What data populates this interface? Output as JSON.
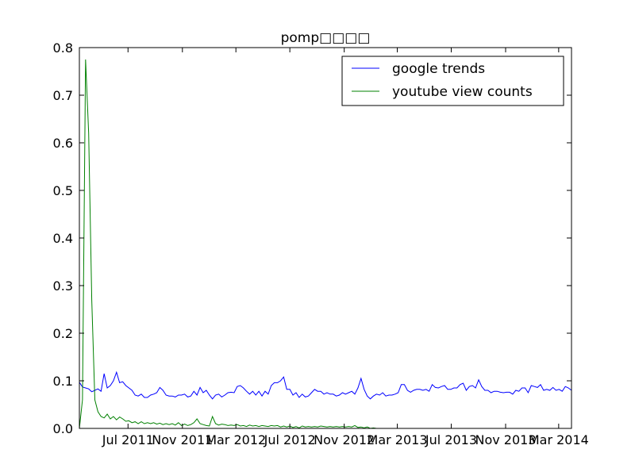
{
  "chart_data": {
    "type": "line",
    "title": "pomp□□□□",
    "xlabel": "",
    "ylabel": "",
    "xlim": [
      "2011-03-13",
      "2014-03-30"
    ],
    "ylim": [
      0.0,
      0.8
    ],
    "y_ticks": [
      "0.0",
      "0.1",
      "0.2",
      "0.3",
      "0.4",
      "0.5",
      "0.6",
      "0.7",
      "0.8"
    ],
    "x_ticks": [
      {
        "date": "2011-07-01",
        "label": "Jul 2011"
      },
      {
        "date": "2011-11-01",
        "label": "Nov 2011"
      },
      {
        "date": "2012-03-01",
        "label": "Mar 2012"
      },
      {
        "date": "2012-07-01",
        "label": "Jul 2012"
      },
      {
        "date": "2012-11-01",
        "label": "Nov 2012"
      },
      {
        "date": "2013-03-01",
        "label": "Mar 2013"
      },
      {
        "date": "2013-07-01",
        "label": "Jul 2013"
      },
      {
        "date": "2013-11-01",
        "label": "Nov 2013"
      },
      {
        "date": "2014-03-01",
        "label": "Mar 2014"
      }
    ],
    "grid": false,
    "legend_position": "top-right",
    "series": [
      {
        "name": "google trends",
        "color": "#0000ff",
        "points": [
          [
            "2011-03-13",
            0.097
          ],
          [
            "2011-03-20",
            0.087
          ],
          [
            "2011-03-27",
            0.085
          ],
          [
            "2011-04-03",
            0.083
          ],
          [
            "2011-04-10",
            0.077
          ],
          [
            "2011-04-17",
            0.08
          ],
          [
            "2011-04-24",
            0.083
          ],
          [
            "2011-05-01",
            0.078
          ],
          [
            "2011-05-08",
            0.115
          ],
          [
            "2011-05-15",
            0.085
          ],
          [
            "2011-05-22",
            0.09
          ],
          [
            "2011-05-29",
            0.1
          ],
          [
            "2011-06-05",
            0.118
          ],
          [
            "2011-06-12",
            0.096
          ],
          [
            "2011-06-19",
            0.098
          ],
          [
            "2011-06-26",
            0.09
          ],
          [
            "2011-07-03",
            0.085
          ],
          [
            "2011-07-10",
            0.08
          ],
          [
            "2011-07-17",
            0.07
          ],
          [
            "2011-07-24",
            0.068
          ],
          [
            "2011-07-31",
            0.072
          ],
          [
            "2011-08-07",
            0.065
          ],
          [
            "2011-08-14",
            0.065
          ],
          [
            "2011-08-21",
            0.07
          ],
          [
            "2011-08-28",
            0.072
          ],
          [
            "2011-09-04",
            0.075
          ],
          [
            "2011-09-11",
            0.086
          ],
          [
            "2011-09-18",
            0.08
          ],
          [
            "2011-09-25",
            0.07
          ],
          [
            "2011-10-02",
            0.068
          ],
          [
            "2011-10-09",
            0.068
          ],
          [
            "2011-10-16",
            0.066
          ],
          [
            "2011-10-23",
            0.07
          ],
          [
            "2011-10-30",
            0.07
          ],
          [
            "2011-11-06",
            0.072
          ],
          [
            "2011-11-13",
            0.066
          ],
          [
            "2011-11-20",
            0.068
          ],
          [
            "2011-11-27",
            0.078
          ],
          [
            "2011-12-04",
            0.07
          ],
          [
            "2011-12-11",
            0.086
          ],
          [
            "2011-12-18",
            0.075
          ],
          [
            "2011-12-25",
            0.08
          ],
          [
            "2012-01-01",
            0.07
          ],
          [
            "2012-01-08",
            0.062
          ],
          [
            "2012-01-15",
            0.07
          ],
          [
            "2012-01-22",
            0.072
          ],
          [
            "2012-01-29",
            0.066
          ],
          [
            "2012-02-05",
            0.07
          ],
          [
            "2012-02-12",
            0.075
          ],
          [
            "2012-02-19",
            0.076
          ],
          [
            "2012-02-26",
            0.075
          ],
          [
            "2012-03-04",
            0.088
          ],
          [
            "2012-03-11",
            0.09
          ],
          [
            "2012-03-18",
            0.085
          ],
          [
            "2012-03-25",
            0.078
          ],
          [
            "2012-04-01",
            0.072
          ],
          [
            "2012-04-08",
            0.078
          ],
          [
            "2012-04-15",
            0.07
          ],
          [
            "2012-04-22",
            0.078
          ],
          [
            "2012-04-29",
            0.068
          ],
          [
            "2012-05-06",
            0.078
          ],
          [
            "2012-05-13",
            0.072
          ],
          [
            "2012-05-20",
            0.09
          ],
          [
            "2012-05-27",
            0.096
          ],
          [
            "2012-06-03",
            0.096
          ],
          [
            "2012-06-10",
            0.1
          ],
          [
            "2012-06-17",
            0.108
          ],
          [
            "2012-06-24",
            0.082
          ],
          [
            "2012-07-01",
            0.082
          ],
          [
            "2012-07-08",
            0.07
          ],
          [
            "2012-07-15",
            0.075
          ],
          [
            "2012-07-22",
            0.065
          ],
          [
            "2012-07-29",
            0.072
          ],
          [
            "2012-08-05",
            0.066
          ],
          [
            "2012-08-12",
            0.068
          ],
          [
            "2012-08-19",
            0.075
          ],
          [
            "2012-08-26",
            0.082
          ],
          [
            "2012-09-02",
            0.078
          ],
          [
            "2012-09-09",
            0.078
          ],
          [
            "2012-09-16",
            0.072
          ],
          [
            "2012-09-23",
            0.075
          ],
          [
            "2012-09-30",
            0.072
          ],
          [
            "2012-10-07",
            0.072
          ],
          [
            "2012-10-14",
            0.068
          ],
          [
            "2012-10-21",
            0.07
          ],
          [
            "2012-10-28",
            0.075
          ],
          [
            "2012-11-04",
            0.072
          ],
          [
            "2012-11-11",
            0.075
          ],
          [
            "2012-11-18",
            0.078
          ],
          [
            "2012-11-25",
            0.072
          ],
          [
            "2012-12-02",
            0.085
          ],
          [
            "2012-12-09",
            0.105
          ],
          [
            "2012-12-16",
            0.082
          ],
          [
            "2012-12-23",
            0.068
          ],
          [
            "2012-12-30",
            0.062
          ],
          [
            "2013-01-06",
            0.068
          ],
          [
            "2013-01-13",
            0.072
          ],
          [
            "2013-01-20",
            0.07
          ],
          [
            "2013-01-27",
            0.075
          ],
          [
            "2013-02-03",
            0.068
          ],
          [
            "2013-02-10",
            0.07
          ],
          [
            "2013-02-17",
            0.07
          ],
          [
            "2013-02-24",
            0.072
          ],
          [
            "2013-03-03",
            0.075
          ],
          [
            "2013-03-10",
            0.092
          ],
          [
            "2013-03-17",
            0.092
          ],
          [
            "2013-03-24",
            0.08
          ],
          [
            "2013-03-31",
            0.076
          ],
          [
            "2013-04-07",
            0.08
          ],
          [
            "2013-04-14",
            0.082
          ],
          [
            "2013-04-21",
            0.082
          ],
          [
            "2013-04-28",
            0.08
          ],
          [
            "2013-05-05",
            0.082
          ],
          [
            "2013-05-12",
            0.078
          ],
          [
            "2013-05-19",
            0.092
          ],
          [
            "2013-05-26",
            0.086
          ],
          [
            "2013-06-02",
            0.085
          ],
          [
            "2013-06-09",
            0.088
          ],
          [
            "2013-06-16",
            0.09
          ],
          [
            "2013-06-23",
            0.082
          ],
          [
            "2013-06-30",
            0.082
          ],
          [
            "2013-07-07",
            0.085
          ],
          [
            "2013-07-14",
            0.085
          ],
          [
            "2013-07-21",
            0.092
          ],
          [
            "2013-07-28",
            0.095
          ],
          [
            "2013-08-04",
            0.08
          ],
          [
            "2013-08-11",
            0.088
          ],
          [
            "2013-08-18",
            0.09
          ],
          [
            "2013-08-25",
            0.085
          ],
          [
            "2013-09-01",
            0.102
          ],
          [
            "2013-09-08",
            0.088
          ],
          [
            "2013-09-15",
            0.08
          ],
          [
            "2013-09-22",
            0.08
          ],
          [
            "2013-09-29",
            0.075
          ],
          [
            "2013-10-06",
            0.078
          ],
          [
            "2013-10-13",
            0.078
          ],
          [
            "2013-10-20",
            0.076
          ],
          [
            "2013-10-27",
            0.075
          ],
          [
            "2013-11-03",
            0.076
          ],
          [
            "2013-11-10",
            0.076
          ],
          [
            "2013-11-17",
            0.072
          ],
          [
            "2013-11-24",
            0.08
          ],
          [
            "2013-12-01",
            0.078
          ],
          [
            "2013-12-08",
            0.085
          ],
          [
            "2013-12-15",
            0.085
          ],
          [
            "2013-12-22",
            0.075
          ],
          [
            "2013-12-29",
            0.09
          ],
          [
            "2014-01-05",
            0.088
          ],
          [
            "2014-01-12",
            0.086
          ],
          [
            "2014-01-19",
            0.092
          ],
          [
            "2014-01-26",
            0.08
          ],
          [
            "2014-02-02",
            0.082
          ],
          [
            "2014-02-09",
            0.08
          ],
          [
            "2014-02-16",
            0.086
          ],
          [
            "2014-02-23",
            0.08
          ],
          [
            "2014-03-02",
            0.082
          ],
          [
            "2014-03-09",
            0.078
          ],
          [
            "2014-03-16",
            0.088
          ],
          [
            "2014-03-23",
            0.085
          ],
          [
            "2014-03-30",
            0.08
          ]
        ]
      },
      {
        "name": "youtube view counts",
        "color": "#008000",
        "points": [
          [
            "2011-03-13",
            0.0
          ],
          [
            "2011-03-20",
            0.06
          ],
          [
            "2011-03-27",
            0.775
          ],
          [
            "2011-04-03",
            0.62
          ],
          [
            "2011-04-10",
            0.27
          ],
          [
            "2011-04-17",
            0.06
          ],
          [
            "2011-04-24",
            0.035
          ],
          [
            "2011-05-01",
            0.025
          ],
          [
            "2011-05-08",
            0.022
          ],
          [
            "2011-05-15",
            0.03
          ],
          [
            "2011-05-22",
            0.02
          ],
          [
            "2011-05-29",
            0.025
          ],
          [
            "2011-06-05",
            0.018
          ],
          [
            "2011-06-12",
            0.024
          ],
          [
            "2011-06-19",
            0.02
          ],
          [
            "2011-06-26",
            0.015
          ],
          [
            "2011-07-03",
            0.016
          ],
          [
            "2011-07-10",
            0.012
          ],
          [
            "2011-07-17",
            0.014
          ],
          [
            "2011-07-24",
            0.01
          ],
          [
            "2011-07-31",
            0.014
          ],
          [
            "2011-08-07",
            0.01
          ],
          [
            "2011-08-14",
            0.012
          ],
          [
            "2011-08-21",
            0.01
          ],
          [
            "2011-08-28",
            0.012
          ],
          [
            "2011-09-04",
            0.009
          ],
          [
            "2011-09-11",
            0.011
          ],
          [
            "2011-09-18",
            0.008
          ],
          [
            "2011-09-25",
            0.01
          ],
          [
            "2011-10-02",
            0.008
          ],
          [
            "2011-10-09",
            0.01
          ],
          [
            "2011-10-16",
            0.007
          ],
          [
            "2011-10-23",
            0.012
          ],
          [
            "2011-10-30",
            0.006
          ],
          [
            "2011-11-06",
            0.009
          ],
          [
            "2011-11-13",
            0.006
          ],
          [
            "2011-11-20",
            0.008
          ],
          [
            "2011-11-27",
            0.012
          ],
          [
            "2011-12-04",
            0.02
          ],
          [
            "2011-12-11",
            0.01
          ],
          [
            "2011-12-18",
            0.008
          ],
          [
            "2011-12-25",
            0.006
          ],
          [
            "2012-01-01",
            0.005
          ],
          [
            "2012-01-08",
            0.025
          ],
          [
            "2012-01-15",
            0.01
          ],
          [
            "2012-01-22",
            0.007
          ],
          [
            "2012-01-29",
            0.009
          ],
          [
            "2012-02-05",
            0.008
          ],
          [
            "2012-02-12",
            0.006
          ],
          [
            "2012-02-19",
            0.007
          ],
          [
            "2012-02-26",
            0.006
          ],
          [
            "2012-03-04",
            0.008
          ],
          [
            "2012-03-11",
            0.005
          ],
          [
            "2012-03-18",
            0.006
          ],
          [
            "2012-03-25",
            0.004
          ],
          [
            "2012-04-01",
            0.007
          ],
          [
            "2012-04-08",
            0.005
          ],
          [
            "2012-04-15",
            0.006
          ],
          [
            "2012-04-22",
            0.004
          ],
          [
            "2012-04-29",
            0.006
          ],
          [
            "2012-05-06",
            0.005
          ],
          [
            "2012-05-13",
            0.004
          ],
          [
            "2012-05-20",
            0.006
          ],
          [
            "2012-05-27",
            0.005
          ],
          [
            "2012-06-03",
            0.006
          ],
          [
            "2012-06-10",
            0.003
          ],
          [
            "2012-06-17",
            0.005
          ],
          [
            "2012-06-24",
            0.003
          ],
          [
            "2012-07-01",
            0.005
          ],
          [
            "2012-07-08",
            0.002
          ],
          [
            "2012-07-15",
            0.004
          ],
          [
            "2012-07-22",
            0.001
          ],
          [
            "2012-07-29",
            0.005
          ],
          [
            "2012-08-05",
            0.003
          ],
          [
            "2012-08-12",
            0.004
          ],
          [
            "2012-08-19",
            0.003
          ],
          [
            "2012-08-26",
            0.004
          ],
          [
            "2012-09-02",
            0.003
          ],
          [
            "2012-09-09",
            0.005
          ],
          [
            "2012-09-16",
            0.004
          ],
          [
            "2012-09-23",
            0.003
          ],
          [
            "2012-09-30",
            0.004
          ],
          [
            "2012-10-07",
            0.003
          ],
          [
            "2012-10-14",
            0.004
          ],
          [
            "2012-10-21",
            0.003
          ],
          [
            "2012-10-28",
            0.004
          ],
          [
            "2012-11-04",
            0.003
          ],
          [
            "2012-11-11",
            0.004
          ],
          [
            "2012-11-18",
            0.003
          ],
          [
            "2012-11-25",
            0.006
          ],
          [
            "2012-12-02",
            0.002
          ],
          [
            "2012-12-09",
            0.003
          ],
          [
            "2012-12-16",
            0.001
          ],
          [
            "2012-12-23",
            0.003
          ],
          [
            "2012-12-30",
            0.0
          ],
          [
            "2013-01-06",
            0.001
          ],
          [
            "2013-01-13",
            0.0
          ]
        ]
      }
    ]
  }
}
